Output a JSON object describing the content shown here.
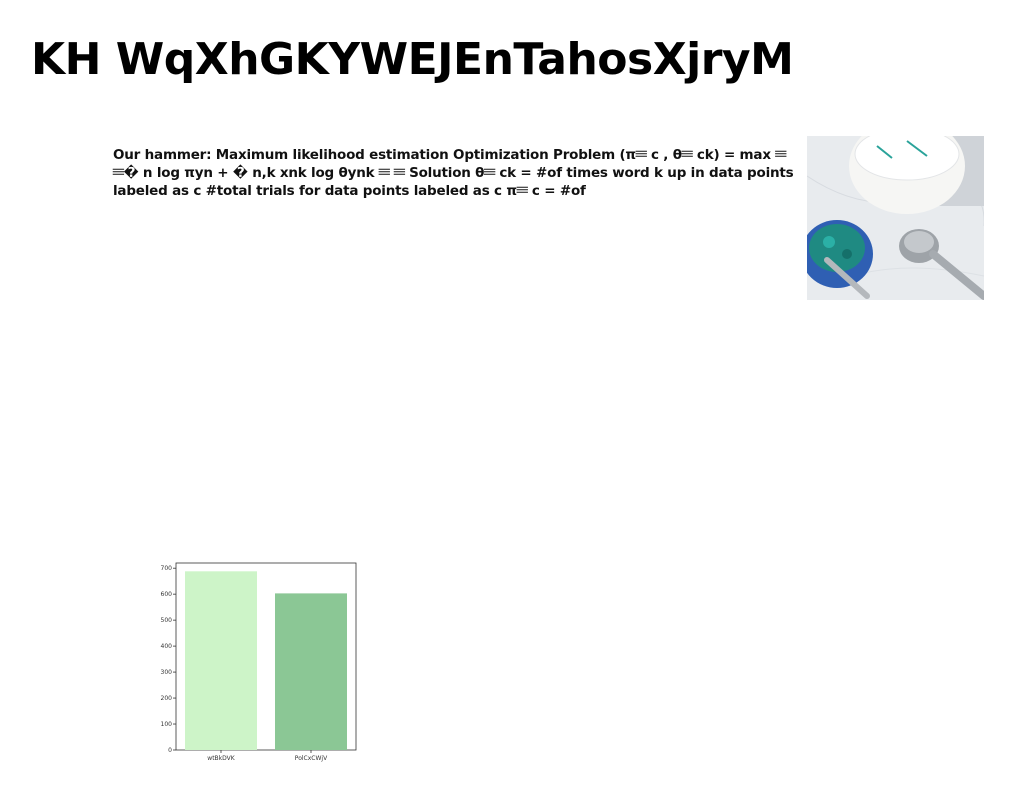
{
  "title": "KH WqXhGKYWEJEnTahosXjryM",
  "body_text": "Our hammer: Maximum likelihood estimation Optimization Problem (π𝄘 c , θ𝄘 ck) = max 𝄘 𝄘� n log πyn + � n,k xnk log θynk 𝄘 𝄘 Solution θ𝄘 ck = #of times word k up in data points labeled as c #total trials for data points labeled as c π𝄘 c = #of",
  "photo": {
    "icon": "photo-bowls-of-green-powder-and-measuring-spoons",
    "colors": {
      "marble": "#e9ecef",
      "bowl_blue": "#2f5fb3",
      "powder": "#1f8a82",
      "cup": "#f7f7f5"
    }
  },
  "chart_data": {
    "type": "bar",
    "categories": [
      "wtBkDVK",
      "PolCxCWjV"
    ],
    "values": [
      688,
      603
    ],
    "ylim": [
      0,
      720
    ],
    "yticks": [
      0,
      100,
      200,
      300,
      400,
      500,
      600,
      700
    ],
    "colors": [
      "#cdf4c8",
      "#8bc795"
    ],
    "title": "",
    "xlabel": "",
    "ylabel": "",
    "grid": false
  }
}
